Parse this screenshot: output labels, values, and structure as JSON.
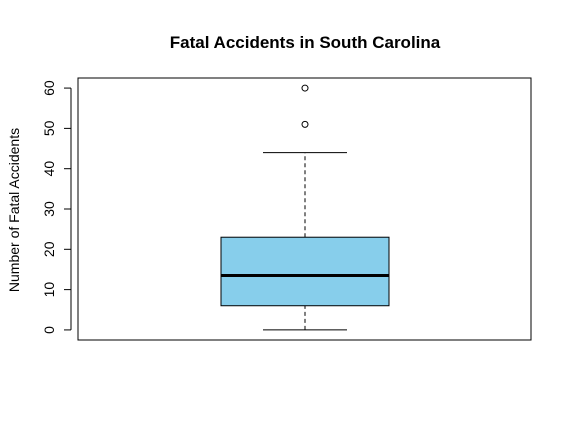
{
  "chart_data": {
    "type": "box",
    "title": "Fatal Accidents in South Carolina",
    "xlabel": "",
    "ylabel": "Number of Fatal Accidents",
    "ylim": [
      -2.5,
      62.5
    ],
    "yticks": [
      0,
      10,
      20,
      30,
      40,
      50,
      60
    ],
    "ytick_labels": [
      "0",
      "10",
      "20",
      "30",
      "40",
      "50",
      "60"
    ],
    "box": {
      "min": 0,
      "q1": 6,
      "median": 13.5,
      "q3": 23,
      "max": 44,
      "outliers": [
        51,
        60
      ]
    },
    "grid": false,
    "legend": "none",
    "colors": {
      "box_fill": "#87CEEB",
      "stroke": "#000000"
    }
  }
}
